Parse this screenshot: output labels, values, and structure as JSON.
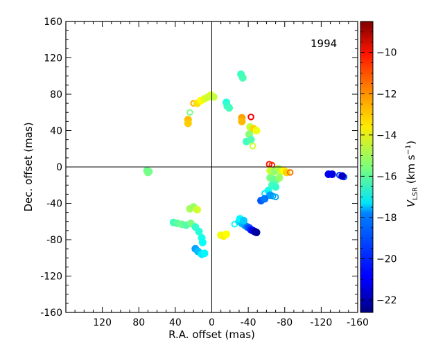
{
  "chart_data": {
    "type": "scatter",
    "annotation": "1994",
    "xlabel": "R.A. offset (mas)",
    "ylabel": "Dec. offset (mas)",
    "xlim": [
      160,
      -160
    ],
    "ylim": [
      -160,
      160
    ],
    "xticks": [
      120,
      80,
      40,
      0,
      -40,
      -80,
      -120,
      -160
    ],
    "yticks": [
      160,
      120,
      80,
      40,
      0,
      -40,
      -80,
      -120,
      -160
    ],
    "origin_lines": true,
    "grid": false,
    "colorbar": {
      "label_main": "V",
      "label_sub": "LSR",
      "label_unit": " (km s",
      "label_exp": "−1",
      "label_close": ")",
      "range": [
        -22.6,
        -8.5
      ],
      "ticks": [
        -10,
        -12,
        -14,
        -16,
        -18,
        -20,
        -22
      ],
      "colormap": "jet"
    },
    "points": [
      {
        "x": 71,
        "y": -4,
        "v": -15.8,
        "filled": true
      },
      {
        "x": 70,
        "y": -6,
        "v": -15.6,
        "filled": true
      },
      {
        "x": 69,
        "y": -5,
        "v": -15.7,
        "filled": true
      },
      {
        "x": 26,
        "y": 52,
        "v": -12.9,
        "filled": true
      },
      {
        "x": 26,
        "y": 48,
        "v": -13.1,
        "filled": true
      },
      {
        "x": 24,
        "y": 60,
        "v": -15.6,
        "filled": false
      },
      {
        "x": 20,
        "y": 70,
        "v": -12.6,
        "filled": false
      },
      {
        "x": 16,
        "y": 70,
        "v": -13.4,
        "filled": true
      },
      {
        "x": 12,
        "y": 73,
        "v": -13.8,
        "filled": true
      },
      {
        "x": 8,
        "y": 75,
        "v": -14.2,
        "filled": true
      },
      {
        "x": 4,
        "y": 77,
        "v": -14.5,
        "filled": true
      },
      {
        "x": 1,
        "y": 79,
        "v": -14.3,
        "filled": true
      },
      {
        "x": -2,
        "y": 77,
        "v": -14.6,
        "filled": true
      },
      {
        "x": -16,
        "y": 71,
        "v": -16.8,
        "filled": true
      },
      {
        "x": -17,
        "y": 67,
        "v": -16.6,
        "filled": true
      },
      {
        "x": -19,
        "y": 65,
        "v": -16.4,
        "filled": true
      },
      {
        "x": -32,
        "y": 102,
        "v": -16.5,
        "filled": true
      },
      {
        "x": -34,
        "y": 98,
        "v": -16.3,
        "filled": true
      },
      {
        "x": -33,
        "y": 54,
        "v": -12.5,
        "filled": true
      },
      {
        "x": -33,
        "y": 50,
        "v": -12.8,
        "filled": true
      },
      {
        "x": -43,
        "y": 55,
        "v": -10.2,
        "filled": false
      },
      {
        "x": -42,
        "y": 44,
        "v": -14.6,
        "filled": true
      },
      {
        "x": -46,
        "y": 42,
        "v": -13.2,
        "filled": true
      },
      {
        "x": -49,
        "y": 40,
        "v": -14.0,
        "filled": true
      },
      {
        "x": -41,
        "y": 36,
        "v": -15.4,
        "filled": true
      },
      {
        "x": -38,
        "y": 28,
        "v": -16.4,
        "filled": true
      },
      {
        "x": -43,
        "y": 30,
        "v": -16.2,
        "filled": true
      },
      {
        "x": -45,
        "y": 23,
        "v": -14.4,
        "filled": false
      },
      {
        "x": -63,
        "y": 3,
        "v": -10.5,
        "filled": false
      },
      {
        "x": -66,
        "y": 2,
        "v": -10.8,
        "filled": false
      },
      {
        "x": -64,
        "y": -4,
        "v": -14.4,
        "filled": true
      },
      {
        "x": -67,
        "y": -6,
        "v": -15.0,
        "filled": true
      },
      {
        "x": -70,
        "y": -4,
        "v": -15.4,
        "filled": true
      },
      {
        "x": -73,
        "y": -2,
        "v": -14.8,
        "filled": true
      },
      {
        "x": -76,
        "y": -5,
        "v": -14.6,
        "filled": true
      },
      {
        "x": -79,
        "y": -4,
        "v": -13.8,
        "filled": true
      },
      {
        "x": -82,
        "y": -6,
        "v": -13.2,
        "filled": true
      },
      {
        "x": -86,
        "y": -6,
        "v": -11.8,
        "filled": false
      },
      {
        "x": -64,
        "y": -12,
        "v": -15.6,
        "filled": true
      },
      {
        "x": -68,
        "y": -14,
        "v": -15.8,
        "filled": true
      },
      {
        "x": -71,
        "y": -14,
        "v": -16.0,
        "filled": true
      },
      {
        "x": -74,
        "y": -12,
        "v": -15.2,
        "filled": true
      },
      {
        "x": -66,
        "y": -20,
        "v": -16.4,
        "filled": true
      },
      {
        "x": -70,
        "y": -22,
        "v": -16.6,
        "filled": true
      },
      {
        "x": -62,
        "y": -26,
        "v": -17.0,
        "filled": true
      },
      {
        "x": -58,
        "y": -29,
        "v": -17.6,
        "filled": false
      },
      {
        "x": -64,
        "y": -31,
        "v": -18.6,
        "filled": true
      },
      {
        "x": -67,
        "y": -32,
        "v": -18.8,
        "filled": false
      },
      {
        "x": -70,
        "y": -33,
        "v": -18.4,
        "filled": false
      },
      {
        "x": -54,
        "y": -37,
        "v": -19.6,
        "filled": true
      },
      {
        "x": -58,
        "y": -35,
        "v": -19.2,
        "filled": true
      },
      {
        "x": -128,
        "y": -8,
        "v": -21.0,
        "filled": true
      },
      {
        "x": -132,
        "y": -8,
        "v": -21.2,
        "filled": true
      },
      {
        "x": -140,
        "y": -9,
        "v": -20.0,
        "filled": false
      },
      {
        "x": -145,
        "y": -11,
        "v": -19.8,
        "filled": false
      },
      {
        "x": -143,
        "y": -10,
        "v": -21.6,
        "filled": true
      },
      {
        "x": 42,
        "y": -61,
        "v": -16.4,
        "filled": true
      },
      {
        "x": 38,
        "y": -62,
        "v": -16.0,
        "filled": true
      },
      {
        "x": 33,
        "y": -63,
        "v": -15.8,
        "filled": true
      },
      {
        "x": 28,
        "y": -64,
        "v": -16.2,
        "filled": true
      },
      {
        "x": 23,
        "y": -62,
        "v": -15.6,
        "filled": true
      },
      {
        "x": 24,
        "y": -46,
        "v": -15.0,
        "filled": true
      },
      {
        "x": 20,
        "y": -44,
        "v": -15.2,
        "filled": true
      },
      {
        "x": 16,
        "y": -47,
        "v": -14.4,
        "filled": true
      },
      {
        "x": 18,
        "y": -66,
        "v": -16.6,
        "filled": true
      },
      {
        "x": 14,
        "y": -71,
        "v": -16.8,
        "filled": true
      },
      {
        "x": 11,
        "y": -78,
        "v": -17.0,
        "filled": true
      },
      {
        "x": 10,
        "y": -83,
        "v": -17.2,
        "filled": true
      },
      {
        "x": 18,
        "y": -90,
        "v": -18.6,
        "filled": true
      },
      {
        "x": 15,
        "y": -93,
        "v": -18.2,
        "filled": true
      },
      {
        "x": 11,
        "y": -96,
        "v": -17.6,
        "filled": true
      },
      {
        "x": 8,
        "y": -95,
        "v": -17.4,
        "filled": true
      },
      {
        "x": -10,
        "y": -75,
        "v": -14.0,
        "filled": true
      },
      {
        "x": -13,
        "y": -76,
        "v": -13.6,
        "filled": true
      },
      {
        "x": -16,
        "y": -74,
        "v": -13.8,
        "filled": true
      },
      {
        "x": -25,
        "y": -63,
        "v": -17.2,
        "filled": false
      },
      {
        "x": -30,
        "y": -60,
        "v": -17.8,
        "filled": true
      },
      {
        "x": -33,
        "y": -62,
        "v": -18.2,
        "filled": true
      },
      {
        "x": -36,
        "y": -64,
        "v": -18.6,
        "filled": true
      },
      {
        "x": -39,
        "y": -66,
        "v": -19.2,
        "filled": true
      },
      {
        "x": -41,
        "y": -67,
        "v": -19.8,
        "filled": true
      },
      {
        "x": -43,
        "y": -69,
        "v": -20.4,
        "filled": true
      },
      {
        "x": -45,
        "y": -70,
        "v": -21.0,
        "filled": true
      },
      {
        "x": -47,
        "y": -71,
        "v": -21.8,
        "filled": true
      },
      {
        "x": -49,
        "y": -72,
        "v": -22.2,
        "filled": true
      },
      {
        "x": -31,
        "y": -57,
        "v": -17.4,
        "filled": true
      },
      {
        "x": -35,
        "y": -59,
        "v": -18.0,
        "filled": true
      }
    ]
  }
}
